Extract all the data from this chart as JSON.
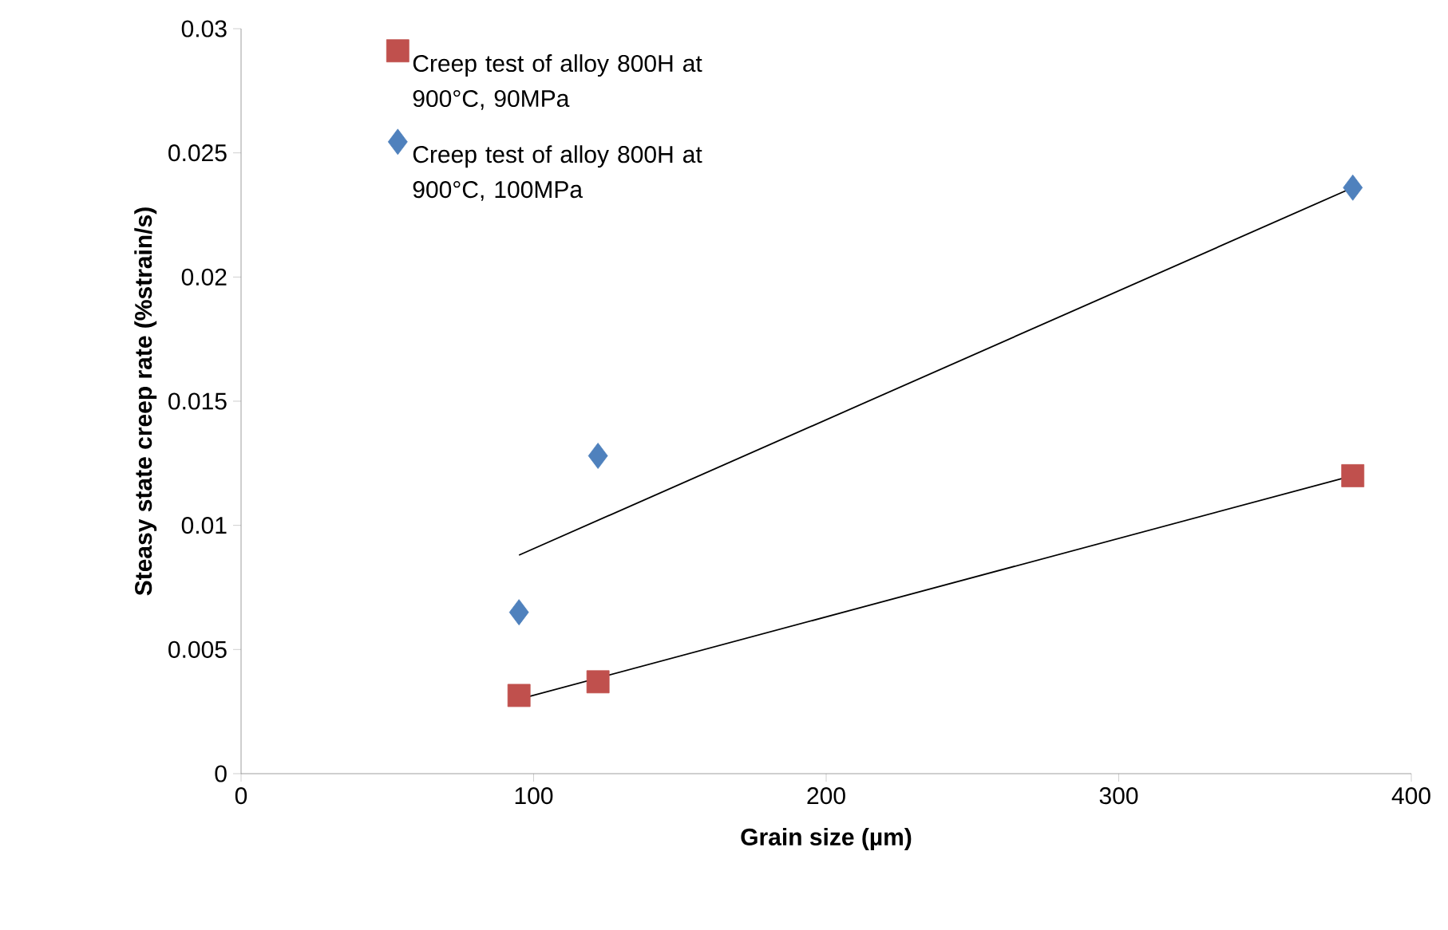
{
  "chart_data": {
    "type": "scatter",
    "xlabel": "Grain size (µm)",
    "ylabel": "Steasy state creep rate (%strain/s)",
    "xlim": [
      0,
      400
    ],
    "xticks": [
      0,
      100,
      200,
      300,
      400
    ],
    "ylim": [
      0,
      0.03
    ],
    "yticks": [
      0,
      0.005,
      0.01,
      0.015,
      0.02,
      0.025,
      0.03
    ],
    "legend": "top left",
    "grid": false,
    "series": [
      {
        "name": "Creep test of alloy 800H at 900°C, 90MPa",
        "color": "#c0504d",
        "marker": "square",
        "x": [
          95,
          122,
          380
        ],
        "values": [
          0.00315,
          0.0037,
          0.012
        ]
      },
      {
        "name": "Creep test of alloy 800H at 900°C, 100MPa",
        "color": "#4f81bd",
        "marker": "diamond",
        "x": [
          95,
          122,
          380
        ],
        "values": [
          0.0065,
          0.0128,
          0.0236
        ]
      },
      {
        "type": "line",
        "color": "#000000",
        "marker": "none",
        "line_style": "solid",
        "x": [
          95,
          380
        ],
        "values": [
          0.003,
          0.012
        ]
      },
      {
        "type": "line",
        "color": "#000000",
        "marker": "none",
        "line_style": "solid",
        "x": [
          95,
          380
        ],
        "values": [
          0.0088,
          0.0236
        ]
      }
    ]
  }
}
